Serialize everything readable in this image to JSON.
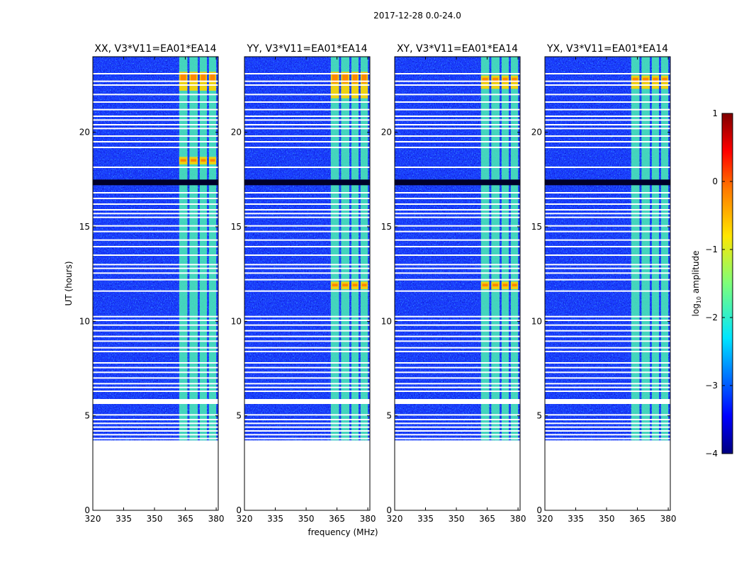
{
  "chart_data": {
    "type": "heatmap",
    "suptitle": "2017-12-28 0.0-24.0",
    "panels": [
      {
        "title": "XX, V3*V11=EA01*EA14",
        "hot_bands": [
          [
            22.2,
            23.2
          ],
          [
            18.3,
            18.7
          ]
        ]
      },
      {
        "title": "YY, V3*V11=EA01*EA14",
        "hot_bands": [
          [
            21.8,
            23.2
          ],
          [
            11.7,
            12.1
          ]
        ]
      },
      {
        "title": "XY, V3*V11=EA01*EA14",
        "hot_bands": [
          [
            22.3,
            23.0
          ],
          [
            11.7,
            12.1
          ]
        ]
      },
      {
        "title": "YX, V3*V11=EA01*EA14",
        "hot_bands": [
          [
            22.3,
            23.0
          ]
        ]
      }
    ],
    "xlabel": "frequency (MHz)",
    "ylabel": "UT (hours)",
    "xlim": [
      320,
      381
    ],
    "ylim": [
      0,
      24
    ],
    "xticks": [
      320,
      335,
      350,
      365,
      380
    ],
    "yticks": [
      0,
      5,
      10,
      15,
      20
    ],
    "data_start_hour": 3.7,
    "rfi_band_mhz": [
      362,
      380
    ],
    "rfi_channels_mhz": [
      [
        362,
        366
      ],
      [
        367,
        371
      ],
      [
        372,
        375.5
      ],
      [
        376.5,
        380
      ]
    ],
    "flagged_hours": [
      3.8,
      4.0,
      4.2,
      4.4,
      4.6,
      4.8,
      5.05,
      5.75,
      5.85,
      6.3,
      6.5,
      6.7,
      7.0,
      7.3,
      7.55,
      7.8,
      8.4,
      8.6,
      8.95,
      9.2,
      9.5,
      9.8,
      10.05,
      10.25,
      11.6,
      12.2,
      12.55,
      12.8,
      13.0,
      13.5,
      13.95,
      14.3,
      14.75,
      15.05,
      15.5,
      15.7,
      15.9,
      16.2,
      16.5,
      16.8,
      18.15,
      19.2,
      19.5,
      19.8,
      20.2,
      20.4,
      20.65,
      20.85,
      21.2,
      21.6,
      22.0,
      22.5,
      22.7,
      23.1
    ],
    "dark_bands_hours": [
      [
        17.2,
        17.5
      ]
    ],
    "colorbar": {
      "label": "log10 amplitude",
      "label_main": "log",
      "label_sub": "10",
      "label_rest": " amplitude",
      "range": [
        -4,
        1
      ],
      "ticks": [
        1,
        0,
        -1,
        -2,
        -3,
        -4
      ],
      "colormap": "jet"
    }
  }
}
